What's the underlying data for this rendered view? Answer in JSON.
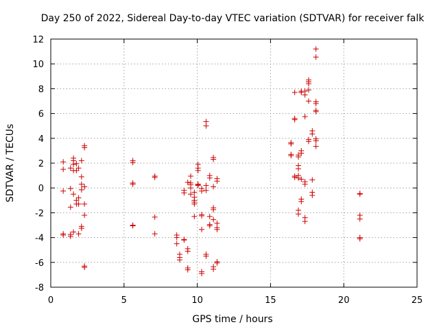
{
  "chart_data": {
    "type": "scatter",
    "title": "Day 250 of 2022, Sidereal Day-to-day VTEC variation (SDTVAR) for receiver falk",
    "xlabel": "GPS time / hours",
    "ylabel": "SDTVAR / TECUs",
    "xlim": [
      0,
      25
    ],
    "ylim": [
      -8,
      12
    ],
    "xticks": [
      0,
      5,
      10,
      15,
      20,
      25
    ],
    "yticks": [
      -8,
      -6,
      -4,
      -2,
      0,
      2,
      4,
      6,
      8,
      10,
      12
    ],
    "grid": true,
    "marker": "+",
    "color": "#cc0000",
    "series": [
      {
        "name": "SDTVAR",
        "points": [
          [
            0.85,
            2.1
          ],
          [
            0.85,
            1.5
          ],
          [
            0.85,
            -0.25
          ],
          [
            0.85,
            -3.7
          ],
          [
            0.85,
            -3.8
          ],
          [
            1.35,
            -0.05
          ],
          [
            1.35,
            -1.55
          ],
          [
            1.35,
            -3.75
          ],
          [
            1.35,
            -3.9
          ],
          [
            1.35,
            1.6
          ],
          [
            1.55,
            2.4
          ],
          [
            1.55,
            2.2
          ],
          [
            1.55,
            1.9
          ],
          [
            1.55,
            1.4
          ],
          [
            1.55,
            -0.5
          ],
          [
            1.55,
            -3.55
          ],
          [
            1.75,
            1.95
          ],
          [
            1.75,
            1.4
          ],
          [
            1.75,
            -1.0
          ],
          [
            1.75,
            -1.3
          ],
          [
            1.9,
            1.6
          ],
          [
            1.9,
            -0.8
          ],
          [
            1.9,
            -3.7
          ],
          [
            1.9,
            -1.3
          ],
          [
            2.1,
            2.2
          ],
          [
            2.1,
            0.9
          ],
          [
            2.1,
            0.3
          ],
          [
            2.1,
            -0.15
          ],
          [
            2.1,
            -3.1
          ],
          [
            2.1,
            -3.25
          ],
          [
            2.3,
            3.4
          ],
          [
            2.3,
            3.25
          ],
          [
            2.3,
            0.1
          ],
          [
            2.3,
            -1.3
          ],
          [
            2.3,
            -2.2
          ],
          [
            2.3,
            -6.3
          ],
          [
            2.3,
            -6.4
          ],
          [
            5.6,
            2.2
          ],
          [
            5.6,
            2.05
          ],
          [
            5.6,
            0.4
          ],
          [
            5.6,
            0.3
          ],
          [
            5.6,
            -3.0
          ],
          [
            5.6,
            -3.05
          ],
          [
            7.1,
            0.95
          ],
          [
            7.1,
            0.85
          ],
          [
            7.1,
            -2.35
          ],
          [
            7.1,
            -3.7
          ],
          [
            8.6,
            -3.8
          ],
          [
            8.6,
            -4.0
          ],
          [
            8.6,
            -4.5
          ],
          [
            8.8,
            -5.35
          ],
          [
            8.8,
            -5.6
          ],
          [
            8.8,
            -5.8
          ],
          [
            9.1,
            -0.4
          ],
          [
            9.1,
            -0.2
          ],
          [
            9.1,
            -4.15
          ],
          [
            9.1,
            -4.2
          ],
          [
            9.35,
            0.45
          ],
          [
            9.35,
            -4.9
          ],
          [
            9.35,
            -5.1
          ],
          [
            9.35,
            -6.45
          ],
          [
            9.35,
            -6.6
          ],
          [
            9.55,
            0.4
          ],
          [
            9.55,
            0.95
          ],
          [
            9.55,
            0.25
          ],
          [
            9.55,
            0.0
          ],
          [
            9.55,
            -0.5
          ],
          [
            9.8,
            -0.35
          ],
          [
            9.8,
            -0.75
          ],
          [
            9.8,
            -1.0
          ],
          [
            9.8,
            -1.15
          ],
          [
            9.8,
            -1.3
          ],
          [
            9.8,
            -2.3
          ],
          [
            10.05,
            0.3
          ],
          [
            10.05,
            0.2
          ],
          [
            10.05,
            0.25
          ],
          [
            10.05,
            1.4
          ],
          [
            10.05,
            1.6
          ],
          [
            10.05,
            1.9
          ],
          [
            10.3,
            -0.05
          ],
          [
            10.3,
            -0.25
          ],
          [
            10.3,
            -2.15
          ],
          [
            10.3,
            -2.25
          ],
          [
            10.3,
            -3.35
          ],
          [
            10.3,
            -6.75
          ],
          [
            10.3,
            -6.9
          ],
          [
            10.6,
            5.35
          ],
          [
            10.6,
            5.0
          ],
          [
            10.6,
            0.2
          ],
          [
            10.6,
            -0.2
          ],
          [
            10.6,
            -5.35
          ],
          [
            10.6,
            -5.5
          ],
          [
            10.85,
            1.0
          ],
          [
            10.85,
            0.8
          ],
          [
            10.85,
            -2.3
          ],
          [
            10.85,
            -2.95
          ],
          [
            10.85,
            -3.05
          ],
          [
            11.1,
            2.45
          ],
          [
            11.1,
            2.3
          ],
          [
            11.1,
            0.1
          ],
          [
            11.1,
            -1.6
          ],
          [
            11.1,
            -1.75
          ],
          [
            11.1,
            -2.55
          ],
          [
            11.1,
            -6.35
          ],
          [
            11.1,
            -6.55
          ],
          [
            11.35,
            0.75
          ],
          [
            11.35,
            0.55
          ],
          [
            11.35,
            -2.85
          ],
          [
            11.35,
            -3.2
          ],
          [
            11.35,
            -3.35
          ],
          [
            11.35,
            -5.95
          ],
          [
            11.35,
            -6.05
          ],
          [
            16.4,
            3.65
          ],
          [
            16.4,
            3.55
          ],
          [
            16.4,
            2.7
          ],
          [
            16.4,
            2.6
          ],
          [
            16.65,
            7.7
          ],
          [
            16.65,
            5.6
          ],
          [
            16.65,
            5.5
          ],
          [
            16.65,
            0.95
          ],
          [
            16.65,
            0.85
          ],
          [
            16.9,
            2.65
          ],
          [
            16.9,
            2.5
          ],
          [
            16.9,
            1.8
          ],
          [
            16.9,
            1.55
          ],
          [
            16.9,
            1.0
          ],
          [
            16.9,
            0.8
          ],
          [
            16.9,
            -1.8
          ],
          [
            16.9,
            -2.1
          ],
          [
            17.1,
            7.8
          ],
          [
            17.1,
            7.7
          ],
          [
            17.1,
            3.0
          ],
          [
            17.1,
            2.8
          ],
          [
            17.1,
            0.7
          ],
          [
            17.1,
            -0.9
          ],
          [
            17.1,
            -1.1
          ],
          [
            17.35,
            7.8
          ],
          [
            17.35,
            7.5
          ],
          [
            17.35,
            5.75
          ],
          [
            17.35,
            0.5
          ],
          [
            17.35,
            0.3
          ],
          [
            17.35,
            -2.4
          ],
          [
            17.35,
            -2.7
          ],
          [
            17.6,
            8.7
          ],
          [
            17.6,
            8.55
          ],
          [
            17.6,
            8.4
          ],
          [
            17.6,
            7.9
          ],
          [
            17.6,
            7.0
          ],
          [
            17.6,
            3.9
          ],
          [
            17.6,
            3.75
          ],
          [
            17.85,
            4.6
          ],
          [
            17.85,
            4.35
          ],
          [
            17.85,
            0.65
          ],
          [
            17.85,
            -0.35
          ],
          [
            17.85,
            -0.6
          ],
          [
            18.1,
            11.2
          ],
          [
            18.1,
            10.55
          ],
          [
            18.1,
            6.95
          ],
          [
            18.1,
            6.8
          ],
          [
            18.1,
            6.25
          ],
          [
            18.1,
            6.15
          ],
          [
            18.1,
            3.95
          ],
          [
            18.1,
            3.8
          ],
          [
            18.1,
            3.35
          ],
          [
            21.1,
            -0.45
          ],
          [
            21.1,
            -0.5
          ],
          [
            21.1,
            -2.2
          ],
          [
            21.1,
            -2.5
          ],
          [
            21.1,
            -4.0
          ],
          [
            21.1,
            -4.1
          ]
        ]
      }
    ]
  }
}
